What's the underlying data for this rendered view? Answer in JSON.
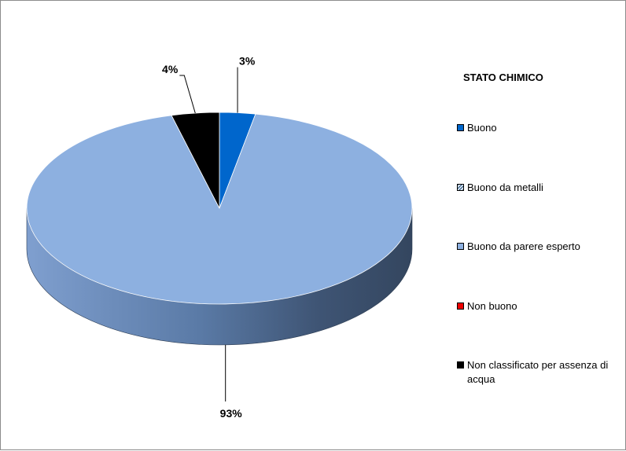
{
  "chart_data": {
    "type": "pie",
    "title": "",
    "legend_title": "STATO CHIMICO",
    "legend_position": "right",
    "slices": [
      {
        "label": "Buono",
        "value": 3,
        "display": "3%",
        "color": "#0066cc"
      },
      {
        "label": "Buono da metalli",
        "value": 0,
        "display": "",
        "color": "#9dc3e6",
        "pattern": "hatched"
      },
      {
        "label": "Buono da parere esperto",
        "value": 93,
        "display": "93%",
        "color": "#8db0e0"
      },
      {
        "label": "Non buono",
        "value": 0,
        "display": "",
        "color": "#ee0000"
      },
      {
        "label": "Non classificato per assenza di acqua",
        "value": 4,
        "display": "4%",
        "color": "#000000"
      }
    ]
  }
}
